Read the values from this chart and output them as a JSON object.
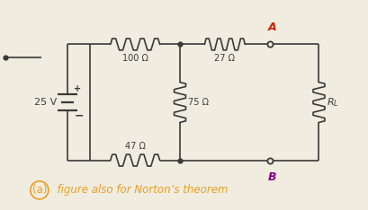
{
  "bg_color": "#f0ece0",
  "wire_color": "#3a3a3a",
  "resistor_color": "#3a3a3a",
  "label_color": "#3a3a3a",
  "caption_color": "#e8a020",
  "A_color": "#cc2200",
  "B_color": "#880088",
  "v_source": "25 V",
  "r1": "100 Ω",
  "r2": "27 Ω",
  "r3": "75 Ω",
  "r4": "47 Ω",
  "caption_a": "(a)",
  "caption_rest": "  figure also for Norton’s theorem"
}
